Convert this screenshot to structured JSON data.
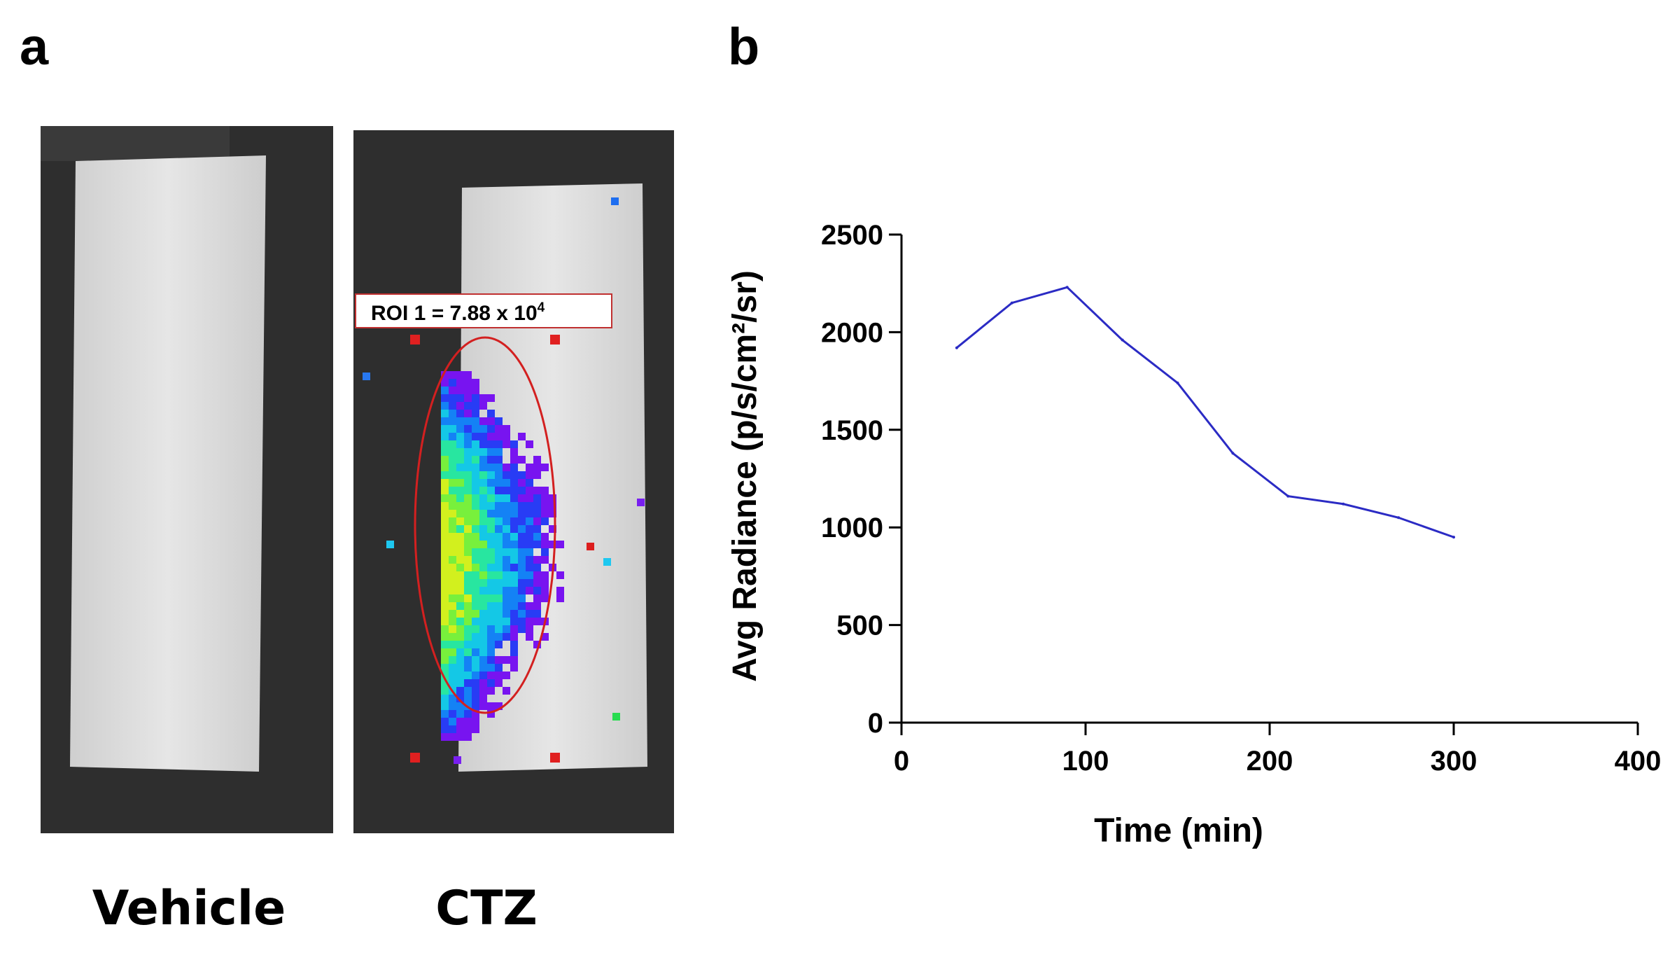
{
  "panel_a": {
    "letter": "a",
    "labels": {
      "left": "Vehicle",
      "right": "CTZ"
    },
    "roi_label": "ROI 1 = 7.88 x 10",
    "roi_exponent": "4",
    "colors": {
      "roi": "#d32020",
      "background": "#2e2e2e",
      "tissue": "#dcdcdc"
    }
  },
  "panel_b": {
    "letter": "b"
  },
  "chart_data": {
    "type": "line",
    "title": "",
    "xlabel": "Time (min)",
    "ylabel": "Avg Radiance (p/s/cm²/sr)",
    "xlim": [
      0,
      400
    ],
    "ylim": [
      0,
      2500
    ],
    "xticks": [
      0,
      100,
      200,
      300,
      400
    ],
    "yticks": [
      0,
      500,
      1000,
      1500,
      2000,
      2500
    ],
    "grid": false,
    "series": [
      {
        "name": "CTZ",
        "color": "#2b2bc4",
        "x": [
          30,
          60,
          90,
          120,
          150,
          180,
          210,
          240,
          270,
          300
        ],
        "y": [
          1920,
          2150,
          2230,
          1960,
          1740,
          1380,
          1160,
          1120,
          1050,
          950
        ]
      }
    ]
  }
}
